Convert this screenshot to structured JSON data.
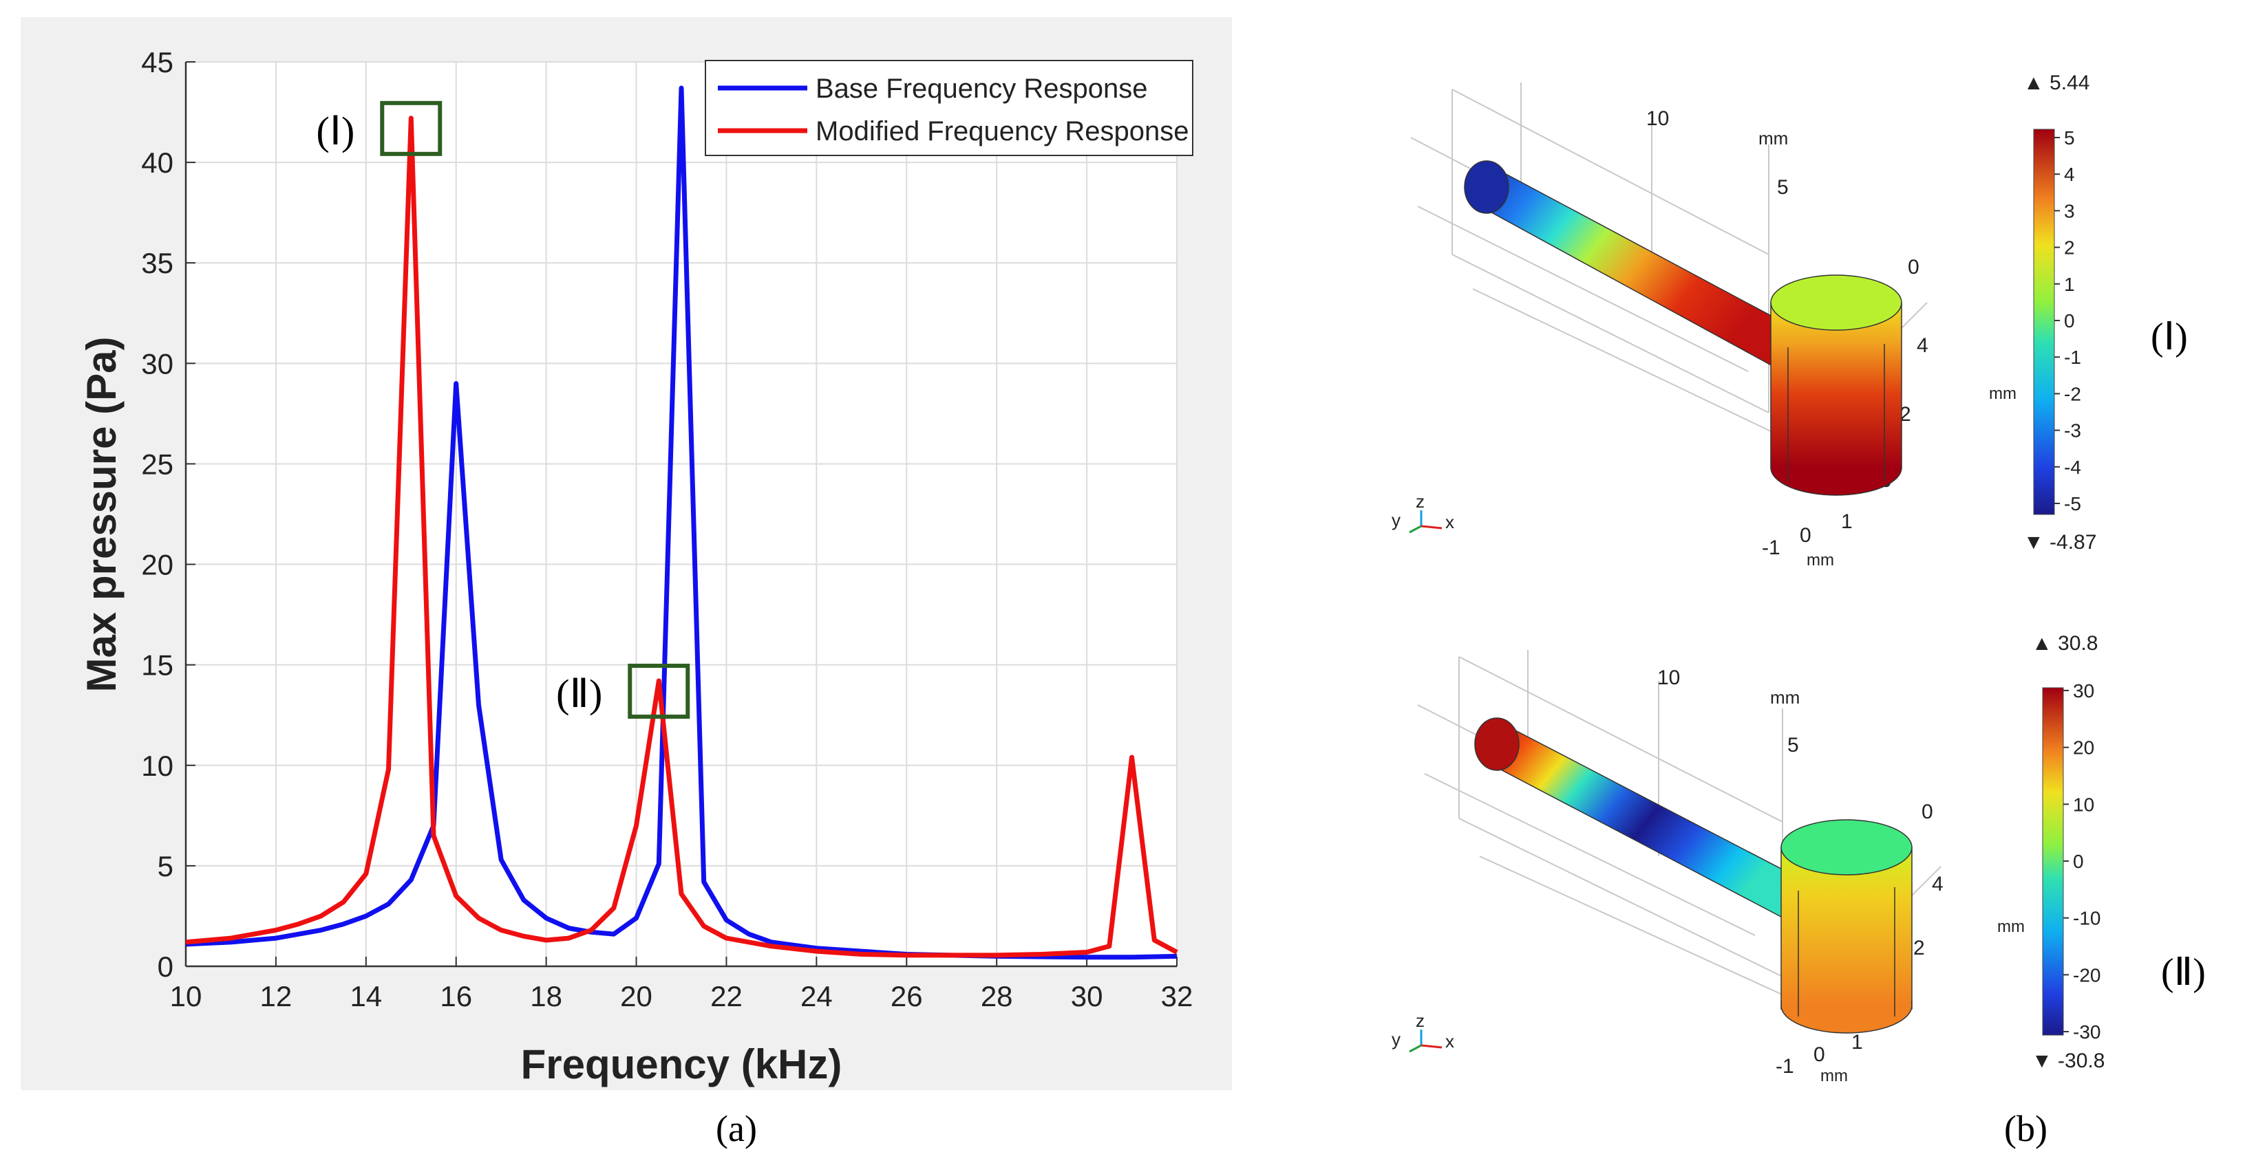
{
  "chart_data": {
    "type": "line",
    "xlabel": "Frequency (kHz)",
    "ylabel": "Max pressure (Pa)",
    "xlim": [
      10,
      32
    ],
    "ylim": [
      0,
      45
    ],
    "xticks": [
      10,
      12,
      14,
      16,
      18,
      20,
      22,
      24,
      26,
      28,
      30,
      32
    ],
    "yticks": [
      0,
      5,
      10,
      15,
      20,
      25,
      30,
      35,
      40,
      45
    ],
    "grid": true,
    "legend_position": "top-right",
    "series": [
      {
        "name": "Base Frequency Response",
        "color": "#1010ee",
        "points": [
          [
            10,
            1.1
          ],
          [
            11,
            1.2
          ],
          [
            12,
            1.4
          ],
          [
            13,
            1.8
          ],
          [
            13.5,
            2.1
          ],
          [
            14,
            2.5
          ],
          [
            14.5,
            3.1
          ],
          [
            15,
            4.3
          ],
          [
            15.5,
            7
          ],
          [
            16,
            29
          ],
          [
            16.5,
            13
          ],
          [
            17,
            5.3
          ],
          [
            17.5,
            3.3
          ],
          [
            18,
            2.4
          ],
          [
            18.5,
            1.9
          ],
          [
            19,
            1.7
          ],
          [
            19.5,
            1.6
          ],
          [
            20,
            2.4
          ],
          [
            20.5,
            5.1
          ],
          [
            21,
            43.7
          ],
          [
            21.5,
            4.2
          ],
          [
            22,
            2.3
          ],
          [
            22.5,
            1.6
          ],
          [
            23,
            1.2
          ],
          [
            24,
            0.9
          ],
          [
            25,
            0.75
          ],
          [
            26,
            0.6
          ],
          [
            28,
            0.5
          ],
          [
            30,
            0.45
          ],
          [
            31,
            0.45
          ],
          [
            32,
            0.5
          ]
        ]
      },
      {
        "name": "Modified Frequency Response",
        "color": "#ee1010",
        "points": [
          [
            10,
            1.2
          ],
          [
            11,
            1.4
          ],
          [
            12,
            1.8
          ],
          [
            12.5,
            2.1
          ],
          [
            13,
            2.5
          ],
          [
            13.5,
            3.2
          ],
          [
            14,
            4.6
          ],
          [
            14.5,
            9.8
          ],
          [
            15,
            42.2
          ],
          [
            15.5,
            6.5
          ],
          [
            16,
            3.5
          ],
          [
            16.5,
            2.4
          ],
          [
            17,
            1.8
          ],
          [
            17.5,
            1.5
          ],
          [
            18,
            1.3
          ],
          [
            18.5,
            1.4
          ],
          [
            19,
            1.8
          ],
          [
            19.5,
            2.9
          ],
          [
            20,
            7
          ],
          [
            20.5,
            14.2
          ],
          [
            21,
            3.6
          ],
          [
            21.5,
            2
          ],
          [
            22,
            1.4
          ],
          [
            23,
            1.0
          ],
          [
            24,
            0.75
          ],
          [
            25,
            0.6
          ],
          [
            26,
            0.55
          ],
          [
            27,
            0.55
          ],
          [
            28,
            0.55
          ],
          [
            29,
            0.6
          ],
          [
            30,
            0.7
          ],
          [
            30.5,
            1.0
          ],
          [
            31,
            10.4
          ],
          [
            31.5,
            1.3
          ],
          [
            32,
            0.7
          ]
        ]
      }
    ],
    "annotations": [
      {
        "label": "(Ⅰ)",
        "x": 15,
        "y": 42.2
      },
      {
        "label": "(Ⅱ)",
        "x": 20.5,
        "y": 14.2
      }
    ]
  },
  "captions": {
    "a": "(a)",
    "b": "(b)"
  },
  "field_plots": [
    {
      "label": "(Ⅰ)",
      "colorbar": {
        "max_label": "▲ 5.44",
        "min_label": "▼ -4.87",
        "ticks": [
          "5",
          "4",
          "3",
          "2",
          "1",
          "0",
          "-1",
          "-2",
          "-3",
          "-4",
          "-5"
        ],
        "unit": "mm"
      },
      "axis_labels": {
        "z1": "10",
        "z2": "5",
        "z_unit": "mm",
        "y_top": "0",
        "y_ticks": [
          "4",
          "2",
          "0"
        ],
        "x_ticks": [
          "1",
          "0",
          "-1"
        ],
        "x_unit": "mm"
      },
      "triad": {
        "y": "y",
        "z": "z",
        "x": "x"
      }
    },
    {
      "label": "(Ⅱ)",
      "colorbar": {
        "max_label": "▲ 30.8",
        "min_label": "▼ -30.8",
        "ticks": [
          "30",
          "20",
          "10",
          "0",
          "-10",
          "-20",
          "-30"
        ],
        "unit": "mm"
      },
      "axis_labels": {
        "z1": "10",
        "z2": "5",
        "z_unit": "mm",
        "y_top": "0",
        "y_ticks": [
          "4",
          "2",
          "0"
        ],
        "x_ticks": [
          "1",
          "0",
          "-1"
        ],
        "x_unit": "mm"
      },
      "triad": {
        "y": "y",
        "z": "z",
        "x": "x"
      }
    }
  ]
}
